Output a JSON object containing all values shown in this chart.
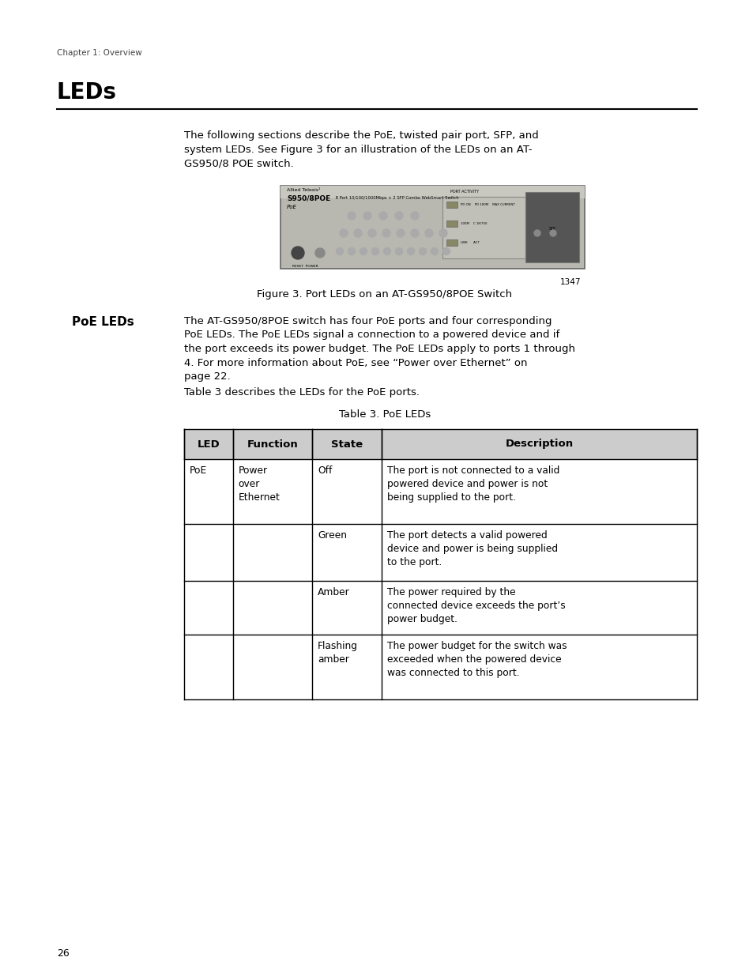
{
  "page_background": "#ffffff",
  "chapter_label": "Chapter 1: Overview",
  "section_title": "LEDs",
  "intro_lines": [
    "The following sections describe the PoE, twisted pair port, SFP, and",
    "system LEDs. See Figure 3 for an illustration of the LEDs on an AT-",
    "GS950/8 POE switch."
  ],
  "figure_caption": "Figure 3. Port LEDs on an AT-GS950/8POE Switch",
  "figure_number": "1347",
  "poe_leds_heading": "PoE LEDs",
  "poe_body_lines": [
    "The AT-GS950/8POE switch has four PoE ports and four corresponding",
    "PoE LEDs. The PoE LEDs signal a connection to a powered device and if",
    "the port exceeds its power budget. The PoE LEDs apply to ports 1 through",
    "4. For more information about PoE, see “Power over Ethernet” on",
    "page 22."
  ],
  "table_intro": "Table 3 describes the LEDs for the PoE ports.",
  "table_title": "Table 3. PoE LEDs",
  "table_headers": [
    "LED",
    "Function",
    "State",
    "Description"
  ],
  "table_rows": [
    [
      "PoE",
      "Power\nover\nEthernet",
      "Off",
      "The port is not connected to a valid\npowered device and power is not\nbeing supplied to the port."
    ],
    [
      "",
      "",
      "Green",
      "The port detects a valid powered\ndevice and power is being supplied\nto the port."
    ],
    [
      "",
      "",
      "Amber",
      "The power required by the\nconnected device exceeds the port’s\npower budget."
    ],
    [
      "",
      "",
      "Flashing\namber",
      "The power budget for the switch was\nexceeded when the powered device\nwas connected to this port."
    ]
  ],
  "page_number": "26",
  "text_color": "#000000",
  "header_bg": "#cccccc",
  "table_border": "#000000"
}
